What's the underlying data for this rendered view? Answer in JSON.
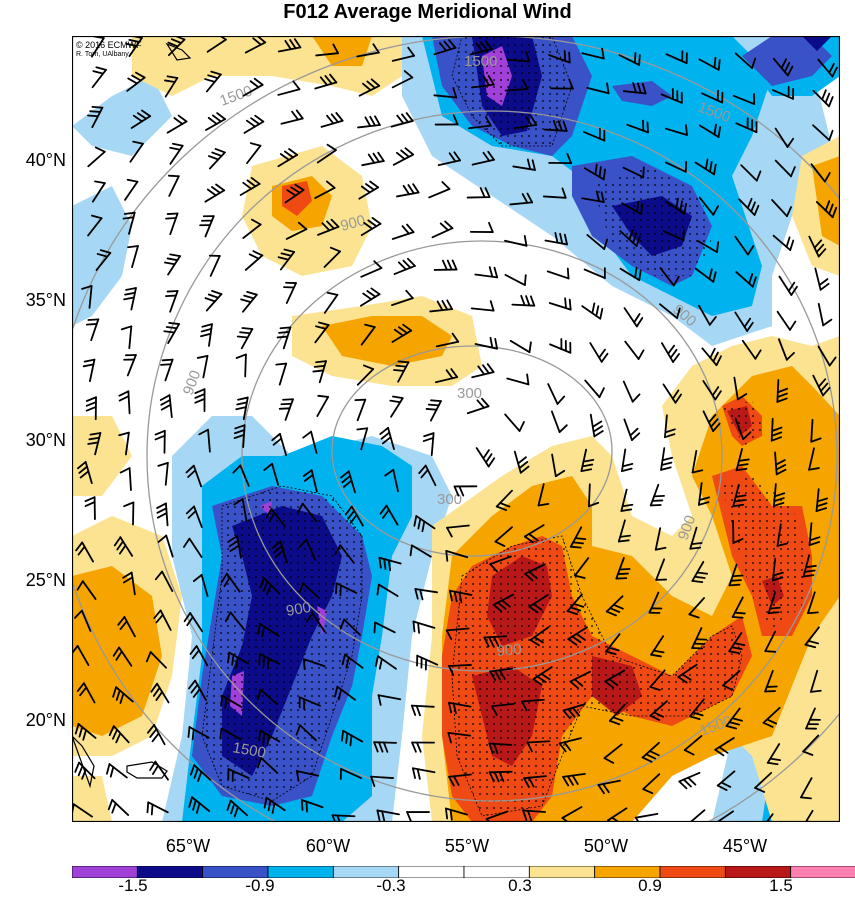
{
  "title": "F012 Average Meridional Wind",
  "credits": [
    "© 2016 ECMWF",
    "R. Torn, UAlbany"
  ],
  "lat_labels": [
    "40°N",
    "35°N",
    "30°N",
    "25°N",
    "20°N"
  ],
  "lon_labels": [
    "65°W",
    "60°W",
    "55°W",
    "50°W",
    "45°W"
  ],
  "colorbar": {
    "colors": [
      "#a040d8",
      "#0c0c8a",
      "#3a52c8",
      "#00b2ee",
      "#a6d8f5",
      "#ffffff",
      "#ffffff",
      "#fbe391",
      "#f5a400",
      "#f04a14",
      "#b81818",
      "#ff80b0"
    ],
    "labels": [
      "-1.5",
      "-0.9",
      "-0.3",
      "0.3",
      "0.9",
      "1.5"
    ]
  },
  "contour_labels": [
    "1500",
    "1500",
    "1500",
    "900",
    "900",
    "900",
    "900",
    "900",
    "300",
    "300",
    "900",
    "1500",
    "1500"
  ],
  "colors": {
    "gray_contour": "#999999",
    "barb": "#000000",
    "coast": "#000000"
  }
}
